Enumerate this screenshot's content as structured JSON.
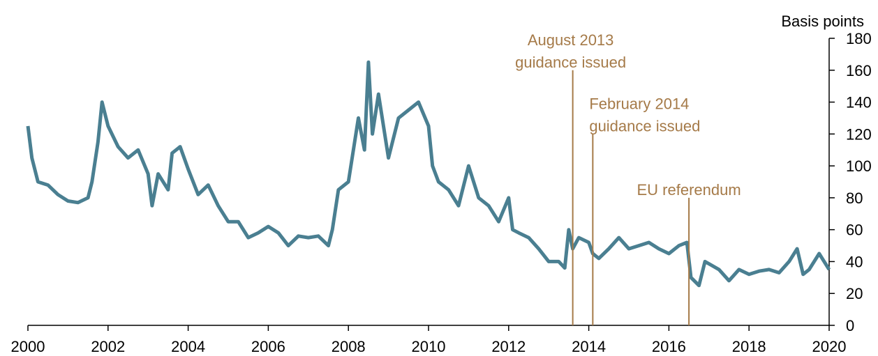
{
  "chart_data": {
    "type": "line",
    "y_label": "Basis points",
    "color": "#4a7f91",
    "annotation_color": "#a57a48",
    "x": [
      2000.0,
      2000.1,
      2000.25,
      2000.5,
      2000.75,
      2001.0,
      2001.25,
      2001.5,
      2001.6,
      2001.75,
      2001.85,
      2002.0,
      2002.25,
      2002.5,
      2002.75,
      2003.0,
      2003.1,
      2003.25,
      2003.5,
      2003.6,
      2003.8,
      2004.0,
      2004.25,
      2004.5,
      2004.75,
      2005.0,
      2005.25,
      2005.5,
      2005.75,
      2006.0,
      2006.25,
      2006.5,
      2006.75,
      2007.0,
      2007.25,
      2007.5,
      2007.6,
      2007.75,
      2008.0,
      2008.25,
      2008.4,
      2008.5,
      2008.6,
      2008.75,
      2009.0,
      2009.25,
      2009.5,
      2009.75,
      2010.0,
      2010.1,
      2010.25,
      2010.5,
      2010.75,
      2011.0,
      2011.25,
      2011.5,
      2011.75,
      2012.0,
      2012.1,
      2012.25,
      2012.5,
      2012.75,
      2013.0,
      2013.25,
      2013.4,
      2013.5,
      2013.6,
      2013.75,
      2014.0,
      2014.1,
      2014.25,
      2014.5,
      2014.75,
      2015.0,
      2015.25,
      2015.5,
      2015.75,
      2016.0,
      2016.25,
      2016.45,
      2016.55,
      2016.75,
      2016.9,
      2017.25,
      2017.5,
      2017.75,
      2018.0,
      2018.25,
      2018.5,
      2018.75,
      2019.0,
      2019.2,
      2019.35,
      2019.5,
      2019.75,
      2020.0
    ],
    "values": [
      125,
      105,
      90,
      88,
      82,
      78,
      77,
      80,
      90,
      115,
      140,
      125,
      112,
      105,
      110,
      95,
      75,
      95,
      85,
      108,
      112,
      98,
      82,
      88,
      75,
      65,
      65,
      55,
      58,
      62,
      58,
      50,
      56,
      55,
      56,
      50,
      60,
      85,
      90,
      130,
      110,
      165,
      120,
      145,
      105,
      130,
      135,
      140,
      125,
      100,
      90,
      85,
      75,
      100,
      80,
      75,
      65,
      80,
      60,
      58,
      55,
      48,
      40,
      40,
      36,
      60,
      48,
      55,
      52,
      45,
      42,
      48,
      55,
      48,
      50,
      52,
      48,
      45,
      50,
      52,
      30,
      25,
      40,
      35,
      28,
      35,
      32,
      34,
      35,
      33,
      40,
      48,
      32,
      35,
      45,
      35
    ],
    "xlim": [
      2000,
      2020
    ],
    "xticks": [
      2000,
      2002,
      2004,
      2006,
      2008,
      2010,
      2012,
      2014,
      2016,
      2018,
      2020
    ],
    "ylim": [
      0,
      180
    ],
    "yticks": [
      0,
      20,
      40,
      60,
      80,
      100,
      120,
      140,
      160,
      180
    ],
    "annotations": [
      {
        "text": [
          "August 2013",
          "guidance issued"
        ],
        "x": 2013.6,
        "y": 160
      },
      {
        "text": [
          "February 2014",
          "guidance issued"
        ],
        "x": 2014.1,
        "y": 120
      },
      {
        "text": [
          "EU referendum"
        ],
        "x": 2016.5,
        "y": 80
      }
    ]
  }
}
